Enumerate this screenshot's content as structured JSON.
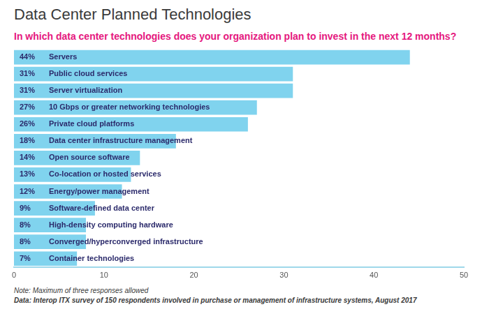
{
  "chart_data": {
    "type": "bar",
    "orientation": "horizontal",
    "title": "Data Center Planned Technologies",
    "subtitle": "In which data center technologies does your organization plan to invest in the next 12 months?",
    "annotations": [
      "Note: Maximum of three responses allowed",
      "Data: Interop ITX survey of 150 respondents involved in purchase or management of infrastructure systems, August 2017"
    ],
    "categories": [
      "Servers",
      "Public cloud services",
      "Server virtualization",
      "10 Gbps or greater networking technologies",
      "Private cloud platforms",
      "Data center infrastructure management",
      "Open source software",
      "Co-location or hosted services",
      "Energy/power management",
      "Software-defined data center",
      "High-density computing hardware",
      "Converged/hyperconverged infrastructure",
      "Container technologies"
    ],
    "values": [
      44,
      31,
      31,
      27,
      26,
      18,
      14,
      13,
      12,
      9,
      8,
      8,
      7
    ],
    "value_labels": [
      "44%",
      "31%",
      "31%",
      "27%",
      "26%",
      "18%",
      "14%",
      "13%",
      "12%",
      "9%",
      "8%",
      "8%",
      "7%"
    ],
    "data_labels": true,
    "color": "#80d3ee",
    "xlim": [
      0,
      50
    ],
    "xticks": [
      0,
      10,
      20,
      30,
      40,
      50
    ],
    "grid": false,
    "tick_labels": "x"
  }
}
